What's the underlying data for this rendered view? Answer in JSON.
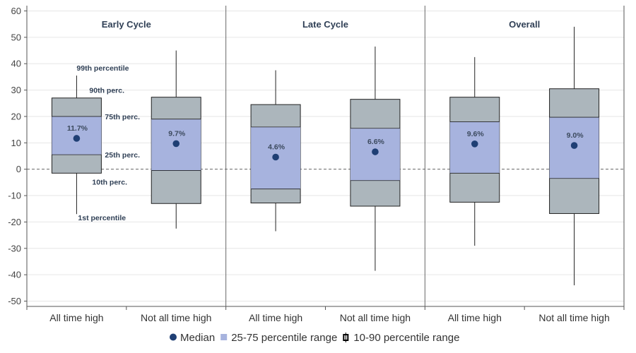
{
  "chart_data": {
    "type": "boxplot",
    "ylim": [
      -52,
      62
    ],
    "yticks": [
      60,
      50,
      40,
      30,
      20,
      10,
      0,
      -10,
      -20,
      -30,
      -40,
      -50
    ],
    "panels": [
      {
        "title": "Early Cycle",
        "boxes": [
          {
            "category": "All time high",
            "p1": -17,
            "p10": -1.5,
            "p25": 5.5,
            "median": 11.7,
            "median_label": "11.7%",
            "p75": 20,
            "p90": 27,
            "p99": 35.5
          },
          {
            "category": "Not all time high",
            "p1": -22.5,
            "p10": -13,
            "p25": -0.5,
            "median": 9.7,
            "median_label": "9.7%",
            "p75": 19,
            "p90": 27.3,
            "p99": 45
          }
        ]
      },
      {
        "title": "Late Cycle",
        "boxes": [
          {
            "category": "All time high",
            "p1": -23.5,
            "p10": -12.8,
            "p25": -7.5,
            "median": 4.6,
            "median_label": "4.6%",
            "p75": 16,
            "p90": 24.5,
            "p99": 37.5
          },
          {
            "category": "Not all time high",
            "p1": -38.5,
            "p10": -14,
            "p25": -4.3,
            "median": 6.6,
            "median_label": "6.6%",
            "p75": 15.5,
            "p90": 26.5,
            "p99": 46.5
          }
        ]
      },
      {
        "title": "Overall",
        "boxes": [
          {
            "category": "All time high",
            "p1": -29,
            "p10": -12.5,
            "p25": -1.5,
            "median": 9.6,
            "median_label": "9.6%",
            "p75": 18,
            "p90": 27.3,
            "p99": 42.5
          },
          {
            "category": "Not all time high",
            "p1": -44,
            "p10": -16.8,
            "p25": -3.5,
            "median": 9.0,
            "median_label": "9.0%",
            "p75": 19.7,
            "p90": 30.5,
            "p99": 54
          }
        ]
      }
    ],
    "annotations": [
      {
        "text": "99th percentile",
        "value": 38.5
      },
      {
        "text": "90th perc.",
        "value": 30
      },
      {
        "text": "75th perc.",
        "value": 20
      },
      {
        "text": "25th perc.",
        "value": 5.5
      },
      {
        "text": "10th perc.",
        "value": -4.8
      },
      {
        "text": "1st percentile",
        "value": -18.3
      }
    ],
    "legend": [
      {
        "label": "Median",
        "marker": "dot"
      },
      {
        "label": "25-75 percentile range",
        "marker": "square"
      },
      {
        "label": "10-90 percentile range",
        "marker": "box"
      }
    ],
    "colors": {
      "median": "#1f3f74",
      "iqr": "#a7b3de",
      "outer": "#acb6bc",
      "stroke": "#222222",
      "grid": "#e6e6e6",
      "zero": "#666666"
    }
  }
}
